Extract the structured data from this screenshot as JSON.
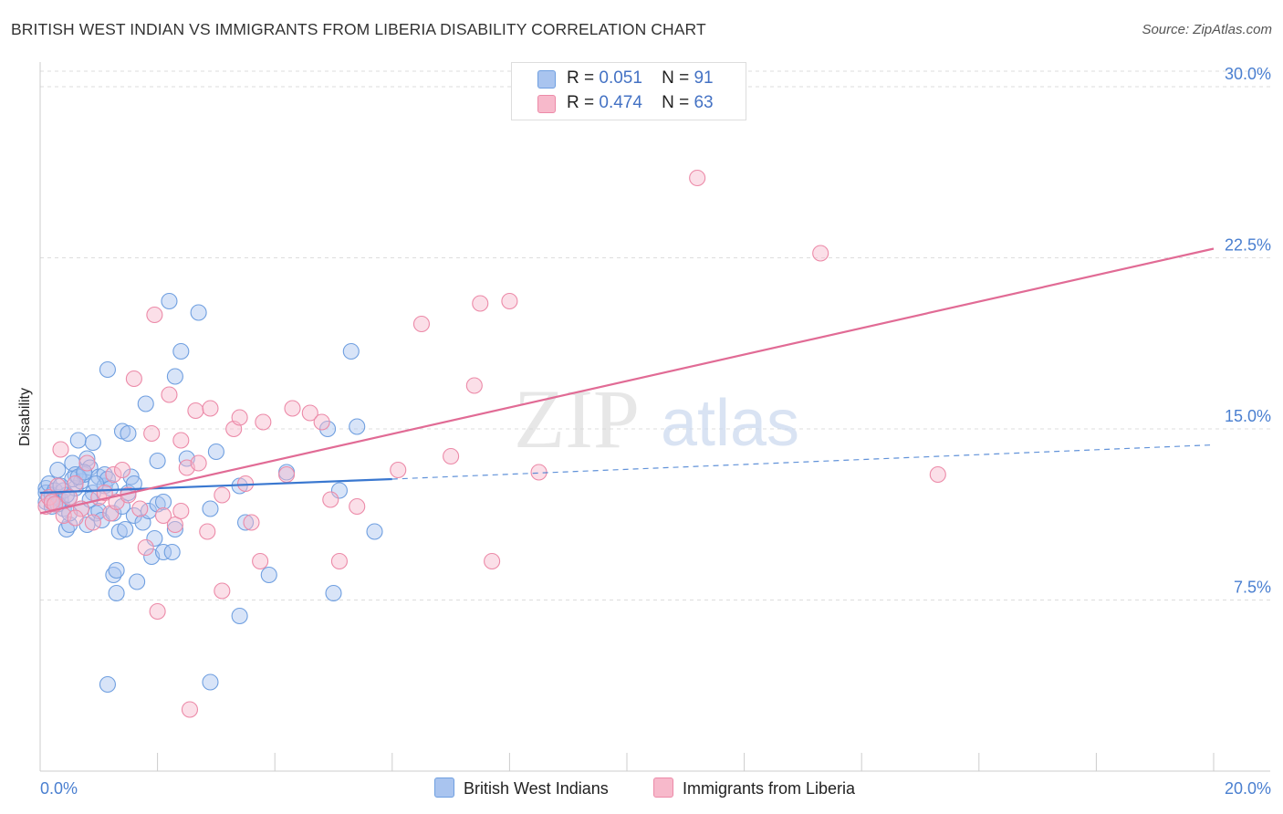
{
  "title": "BRITISH WEST INDIAN VS IMMIGRANTS FROM LIBERIA DISABILITY CORRELATION CHART",
  "source": "Source: ZipAtlas.com",
  "watermark": {
    "zip": "ZIP",
    "atlas": "atlas"
  },
  "legend": [
    {
      "r_label": "R =",
      "r_value": "0.051",
      "n_label": "N =",
      "n_value": "91",
      "color": "#a9c4ef",
      "border": "#6f9fe0"
    },
    {
      "r_label": "R =",
      "r_value": "0.474",
      "n_label": "N =",
      "n_value": "63",
      "color": "#f7b9cb",
      "border": "#ec8aa8"
    }
  ],
  "bottom_legend": [
    {
      "label": "British West Indians",
      "color": "#a9c4ef",
      "border": "#6f9fe0"
    },
    {
      "label": "Immigrants from Liberia",
      "color": "#f7b9cb",
      "border": "#ec8aa8"
    }
  ],
  "chart_data": {
    "type": "scatter",
    "title": "BRITISH WEST INDIAN VS IMMIGRANTS FROM LIBERIA DISABILITY CORRELATION CHART",
    "xlabel": "",
    "ylabel": "Disability",
    "xlim": [
      0,
      20
    ],
    "ylim": [
      0,
      31
    ],
    "x_tick_labels": [
      {
        "x": 0,
        "label": "0.0%"
      },
      {
        "x": 20,
        "label": "20.0%"
      }
    ],
    "y_ticks": [
      {
        "y": 7.5,
        "label": "7.5%"
      },
      {
        "y": 15,
        "label": "15.0%"
      },
      {
        "y": 22.5,
        "label": "22.5%"
      },
      {
        "y": 30,
        "label": "30.0%"
      }
    ],
    "series": [
      {
        "name": "British West Indians",
        "color": "#6f9fe0",
        "fill": "#a9c4ef",
        "trend": {
          "x0": 0,
          "y0": 12.2,
          "x1": 6.0,
          "y1": 12.8,
          "dash_x1": 20,
          "dash_y1": 14.3,
          "color": "#3a78d0"
        },
        "points": [
          [
            0.1,
            12.4
          ],
          [
            0.1,
            11.8
          ],
          [
            0.1,
            12.2
          ],
          [
            0.15,
            12.6
          ],
          [
            0.2,
            12.1
          ],
          [
            0.2,
            11.6
          ],
          [
            0.25,
            12.3
          ],
          [
            0.3,
            12.0
          ],
          [
            0.3,
            13.2
          ],
          [
            0.35,
            11.9
          ],
          [
            0.4,
            12.3
          ],
          [
            0.4,
            11.5
          ],
          [
            0.45,
            10.6
          ],
          [
            0.5,
            10.8
          ],
          [
            0.5,
            12.0
          ],
          [
            0.55,
            13.5
          ],
          [
            0.6,
            13.0
          ],
          [
            0.6,
            12.4
          ],
          [
            0.65,
            14.5
          ],
          [
            0.7,
            12.7
          ],
          [
            0.7,
            11.5
          ],
          [
            0.75,
            13.0
          ],
          [
            0.8,
            13.7
          ],
          [
            0.8,
            10.8
          ],
          [
            0.85,
            13.3
          ],
          [
            0.9,
            12.2
          ],
          [
            0.9,
            14.4
          ],
          [
            0.95,
            11.3
          ],
          [
            1.0,
            11.4
          ],
          [
            1.0,
            12.9
          ],
          [
            1.05,
            11.0
          ],
          [
            1.1,
            12.5
          ],
          [
            1.1,
            13.0
          ],
          [
            1.15,
            12.8
          ],
          [
            1.15,
            17.6
          ],
          [
            1.2,
            12.4
          ],
          [
            1.25,
            11.3
          ],
          [
            1.25,
            8.6
          ],
          [
            1.3,
            8.8
          ],
          [
            1.3,
            7.8
          ],
          [
            1.35,
            10.5
          ],
          [
            1.4,
            14.9
          ],
          [
            1.4,
            11.6
          ],
          [
            1.45,
            10.6
          ],
          [
            1.5,
            14.8
          ],
          [
            1.5,
            12.2
          ],
          [
            1.55,
            12.9
          ],
          [
            1.6,
            12.6
          ],
          [
            1.6,
            11.2
          ],
          [
            1.65,
            8.3
          ],
          [
            1.75,
            10.9
          ],
          [
            1.8,
            16.1
          ],
          [
            1.85,
            11.4
          ],
          [
            1.9,
            9.4
          ],
          [
            1.95,
            10.2
          ],
          [
            2.0,
            11.7
          ],
          [
            2.0,
            13.6
          ],
          [
            2.1,
            9.6
          ],
          [
            2.1,
            11.8
          ],
          [
            2.2,
            20.6
          ],
          [
            2.25,
            9.6
          ],
          [
            2.3,
            10.6
          ],
          [
            2.3,
            17.3
          ],
          [
            2.4,
            18.4
          ],
          [
            2.5,
            13.7
          ],
          [
            2.7,
            20.1
          ],
          [
            2.9,
            11.5
          ],
          [
            3.0,
            14.0
          ],
          [
            3.4,
            12.5
          ],
          [
            3.5,
            10.9
          ],
          [
            3.9,
            8.6
          ],
          [
            4.2,
            13.1
          ],
          [
            4.9,
            15.0
          ],
          [
            5.0,
            7.8
          ],
          [
            5.1,
            12.3
          ],
          [
            5.3,
            18.4
          ],
          [
            5.4,
            15.1
          ],
          [
            5.7,
            10.5
          ],
          [
            1.15,
            3.8
          ],
          [
            2.9,
            3.9
          ],
          [
            3.4,
            6.8
          ],
          [
            0.2,
            11.8
          ],
          [
            0.3,
            11.7
          ],
          [
            0.45,
            12.1
          ],
          [
            0.55,
            12.8
          ],
          [
            0.65,
            12.9
          ],
          [
            0.75,
            13.1
          ],
          [
            0.85,
            11.9
          ],
          [
            0.95,
            12.6
          ],
          [
            0.35,
            12.5
          ],
          [
            0.5,
            11.3
          ]
        ]
      },
      {
        "name": "Immigrants from Liberia",
        "color": "#ec8aa8",
        "fill": "#f7b9cb",
        "trend": {
          "x0": 0,
          "y0": 11.3,
          "x1": 20,
          "y1": 22.9,
          "color": "#e16b95"
        },
        "points": [
          [
            0.1,
            11.6
          ],
          [
            0.15,
            12.0
          ],
          [
            0.2,
            11.8
          ],
          [
            0.3,
            12.5
          ],
          [
            0.35,
            14.1
          ],
          [
            0.4,
            11.2
          ],
          [
            0.5,
            12.0
          ],
          [
            0.6,
            12.6
          ],
          [
            0.7,
            11.5
          ],
          [
            0.8,
            13.5
          ],
          [
            0.9,
            10.9
          ],
          [
            1.0,
            12.0
          ],
          [
            1.1,
            12.2
          ],
          [
            1.2,
            11.3
          ],
          [
            1.25,
            13.0
          ],
          [
            1.3,
            11.8
          ],
          [
            1.4,
            13.2
          ],
          [
            1.5,
            12.1
          ],
          [
            1.6,
            17.2
          ],
          [
            1.7,
            11.5
          ],
          [
            1.8,
            9.8
          ],
          [
            1.9,
            14.8
          ],
          [
            1.95,
            20.0
          ],
          [
            2.0,
            7.0
          ],
          [
            2.1,
            11.2
          ],
          [
            2.2,
            16.5
          ],
          [
            2.3,
            10.8
          ],
          [
            2.4,
            11.4
          ],
          [
            2.4,
            14.5
          ],
          [
            2.5,
            13.3
          ],
          [
            2.55,
            2.7
          ],
          [
            2.65,
            15.8
          ],
          [
            2.7,
            13.5
          ],
          [
            2.85,
            10.5
          ],
          [
            2.9,
            15.9
          ],
          [
            3.1,
            12.1
          ],
          [
            3.1,
            7.9
          ],
          [
            3.3,
            15.0
          ],
          [
            3.4,
            15.5
          ],
          [
            3.5,
            12.6
          ],
          [
            3.6,
            10.9
          ],
          [
            3.75,
            9.2
          ],
          [
            3.8,
            15.3
          ],
          [
            4.2,
            13.0
          ],
          [
            4.3,
            15.9
          ],
          [
            4.6,
            15.7
          ],
          [
            4.8,
            15.3
          ],
          [
            4.95,
            11.9
          ],
          [
            5.1,
            9.2
          ],
          [
            5.4,
            11.6
          ],
          [
            6.1,
            13.2
          ],
          [
            6.5,
            19.6
          ],
          [
            7.0,
            13.8
          ],
          [
            7.4,
            16.9
          ],
          [
            7.5,
            20.5
          ],
          [
            7.7,
            9.2
          ],
          [
            8.0,
            20.6
          ],
          [
            8.5,
            13.1
          ],
          [
            11.2,
            26.0
          ],
          [
            13.3,
            22.7
          ],
          [
            15.3,
            13.0
          ],
          [
            0.25,
            11.7
          ],
          [
            0.6,
            11.1
          ]
        ]
      }
    ]
  }
}
